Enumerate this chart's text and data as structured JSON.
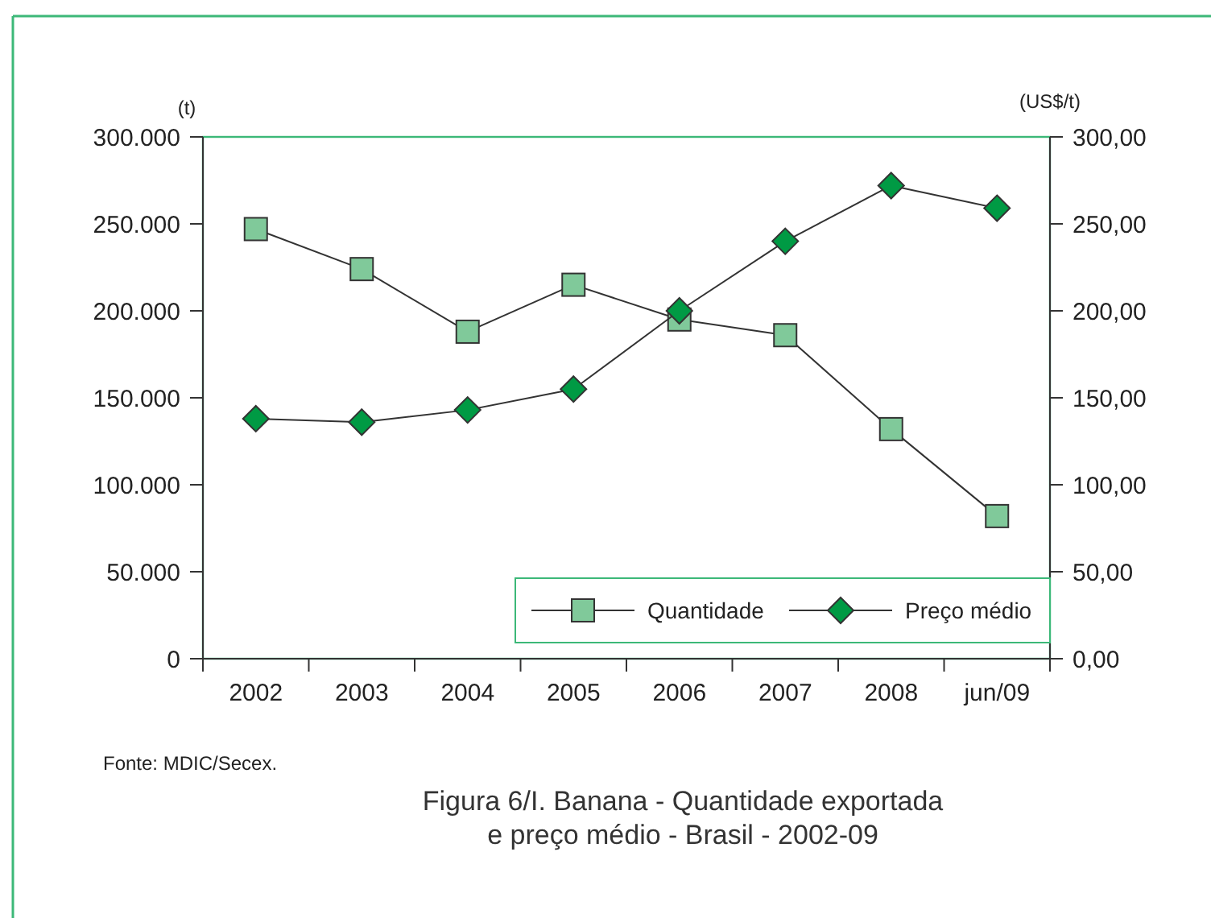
{
  "chart_data": {
    "type": "line",
    "title": "Figura 6/I. Banana - Quantidade exportada e preço médio - Brasil - 2002-09",
    "ylabel": "(t)",
    "y2label": "(US$/t)",
    "annotations": [
      "Fonte: MDIC/Secex."
    ],
    "categories": [
      "2002",
      "2003",
      "2004",
      "2005",
      "2006",
      "2007",
      "2008",
      "jun/09"
    ],
    "series": [
      {
        "name": "Quantidade",
        "color": "#80c99a",
        "marker": "square",
        "values": [
          247000,
          224000,
          188000,
          215000,
          195000,
          186000,
          132000,
          82000
        ]
      },
      {
        "name": "Preço médio",
        "color": "#009a44",
        "marker": "diamond",
        "axis": "y2",
        "values": [
          138,
          136,
          143,
          155,
          200,
          240,
          272,
          259
        ]
      }
    ],
    "ylim": [
      0,
      300000
    ],
    "yticks": [
      {
        "value": 0,
        "label": "0"
      },
      {
        "value": 50000,
        "label": "50.000"
      },
      {
        "value": 100000,
        "label": "100.000"
      },
      {
        "value": 150000,
        "label": "150.000"
      },
      {
        "value": 200000,
        "label": "200.000"
      },
      {
        "value": 250000,
        "label": "250.000"
      },
      {
        "value": 300000,
        "label": "300.000"
      }
    ],
    "y2lim": [
      0,
      300
    ],
    "y2ticks": [
      {
        "value": 0,
        "label": "0,00"
      },
      {
        "value": 50,
        "label": "50,00"
      },
      {
        "value": 100,
        "label": "100,00"
      },
      {
        "value": 150,
        "label": "150,00"
      },
      {
        "value": 200,
        "label": "200,00"
      },
      {
        "value": 250,
        "label": "250,00"
      },
      {
        "value": 300,
        "label": "300,00"
      }
    ],
    "legend": "bottom right",
    "grid": false
  }
}
